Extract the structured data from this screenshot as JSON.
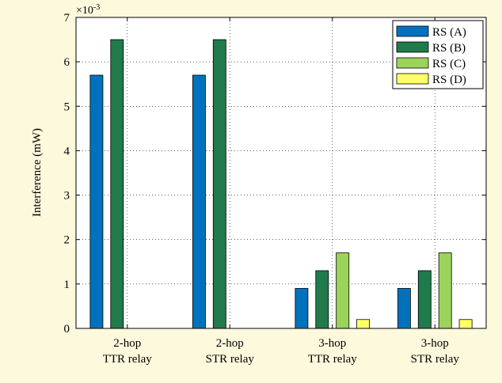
{
  "chart_data": {
    "type": "bar",
    "title": "",
    "xlabel": "",
    "ylabel": "Interference (mW)",
    "y_multiplier": "×10",
    "y_multiplier_exponent": "-3",
    "ylim": [
      0,
      7
    ],
    "yticks": [
      "0",
      "1",
      "2",
      "3",
      "4",
      "5",
      "6",
      "7"
    ],
    "grid": true,
    "legend_position": "top-right",
    "categories": [
      [
        "2-hop",
        "TTR relay"
      ],
      [
        "2-hop",
        "STR relay"
      ],
      [
        "3-hop",
        "TTR relay"
      ],
      [
        "3-hop",
        "STR relay"
      ]
    ],
    "series": [
      {
        "name": "RS (A)",
        "color": "#0072bd",
        "values": [
          5.7,
          5.7,
          0.9,
          0.9
        ]
      },
      {
        "name": "RS (B)",
        "color": "#217a4b",
        "values": [
          6.5,
          6.5,
          1.3,
          1.3
        ]
      },
      {
        "name": "RS (C)",
        "color": "#9cd35a",
        "values": [
          null,
          null,
          1.7,
          1.7
        ]
      },
      {
        "name": "RS (D)",
        "color": "#ffff66",
        "values": [
          null,
          null,
          0.2,
          0.2
        ]
      }
    ]
  }
}
